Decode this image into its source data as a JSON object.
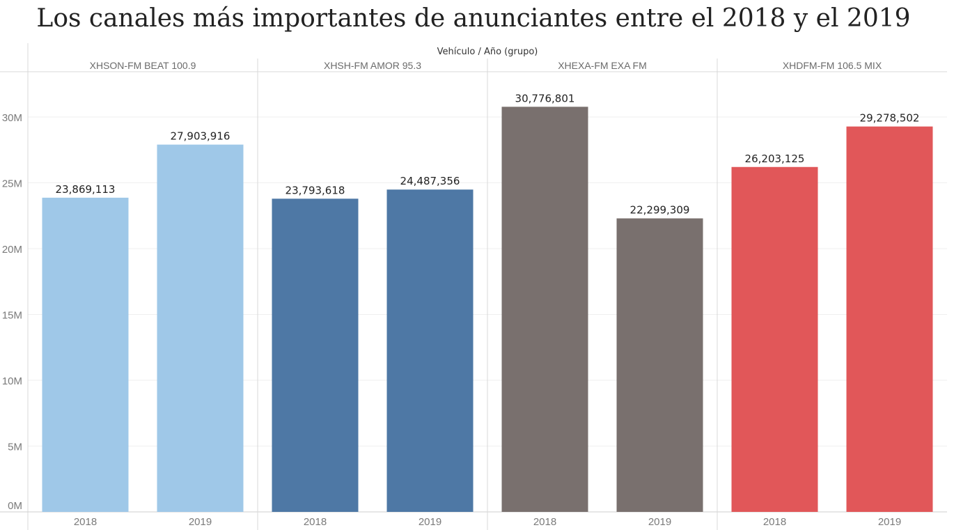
{
  "title": "Los canales más importantes  de anunciantes entre el 2018 y el 2019",
  "chart_data": {
    "type": "bar",
    "title": "Los canales más importantes  de anunciantes entre el 2018 y el 2019",
    "header": "Vehículo  /  Año (grupo)",
    "xlabel": "",
    "ylabel": "",
    "ylim": [
      0,
      33000000
    ],
    "y_ticks": [
      0,
      5000000,
      10000000,
      15000000,
      20000000,
      25000000,
      30000000
    ],
    "y_tick_labels": [
      "0M",
      "5M",
      "10M",
      "15M",
      "20M",
      "25M",
      "30M"
    ],
    "grid": true,
    "groups": [
      {
        "name": "XHSON-FM BEAT 100.9",
        "color": "#9fc8e8",
        "categories": [
          "2018",
          "2019"
        ],
        "values": [
          23869113,
          27903916
        ],
        "labels": [
          "23,869,113",
          "27,903,916"
        ]
      },
      {
        "name": "XHSH-FM AMOR 95.3",
        "color": "#4e78a5",
        "categories": [
          "2018",
          "2019"
        ],
        "values": [
          23793618,
          24487356
        ],
        "labels": [
          "23,793,618",
          "24,487,356"
        ]
      },
      {
        "name": "XHEXA-FM EXA FM",
        "color": "#79706e",
        "categories": [
          "2018",
          "2019"
        ],
        "values": [
          30776801,
          22299309
        ],
        "labels": [
          "30,776,801",
          "22,299,309"
        ]
      },
      {
        "name": "XHDFM-FM 106.5 MIX",
        "color": "#e15759",
        "categories": [
          "2018",
          "2019"
        ],
        "values": [
          26203125,
          29278502
        ],
        "labels": [
          "26,203,125",
          "29,278,502"
        ]
      }
    ]
  }
}
